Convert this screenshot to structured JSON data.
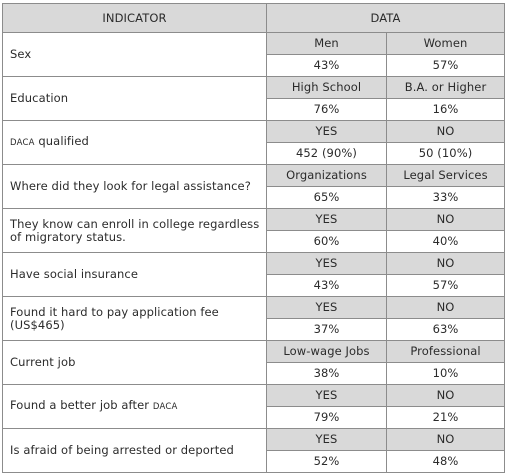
{
  "header": {
    "indicator_label": "INDICATOR",
    "data_label": "DATA"
  },
  "rows": [
    {
      "indicator": "Sex",
      "options": [
        "Men",
        "Women"
      ],
      "values": [
        "43%",
        "57%"
      ]
    },
    {
      "indicator": "Education",
      "options": [
        "High School",
        "B.A. or Higher"
      ],
      "values": [
        "76%",
        "16%"
      ]
    },
    {
      "indicator_prefix": "DACA",
      "indicator": " qualified",
      "options": [
        "YES",
        "NO"
      ],
      "values": [
        "452 (90%)",
        "50 (10%)"
      ]
    },
    {
      "indicator": "Where did they look for legal assistance?",
      "options": [
        "Organizations",
        "Legal Services"
      ],
      "values": [
        "65%",
        "33%"
      ]
    },
    {
      "indicator": "They know can enroll in college regardless of migratory status.",
      "options": [
        "YES",
        "NO"
      ],
      "values": [
        "60%",
        "40%"
      ]
    },
    {
      "indicator": "Have social insurance",
      "options": [
        "YES",
        "NO"
      ],
      "values": [
        "43%",
        "57%"
      ]
    },
    {
      "indicator": "Found it hard to pay application fee (US$465)",
      "options": [
        "YES",
        "NO"
      ],
      "values": [
        "37%",
        "63%"
      ]
    },
    {
      "indicator": "Current job",
      "options": [
        "Low-wage Jobs",
        "Professional"
      ],
      "values": [
        "38%",
        "10%"
      ]
    },
    {
      "indicator": "Found a better job after ",
      "indicator_suffix": "DACA",
      "options": [
        "YES",
        "NO"
      ],
      "values": [
        "79%",
        "21%"
      ]
    },
    {
      "indicator": "Is afraid of being arrested or deported",
      "options": [
        "YES",
        "NO"
      ],
      "values": [
        "52%",
        "48%"
      ]
    }
  ]
}
